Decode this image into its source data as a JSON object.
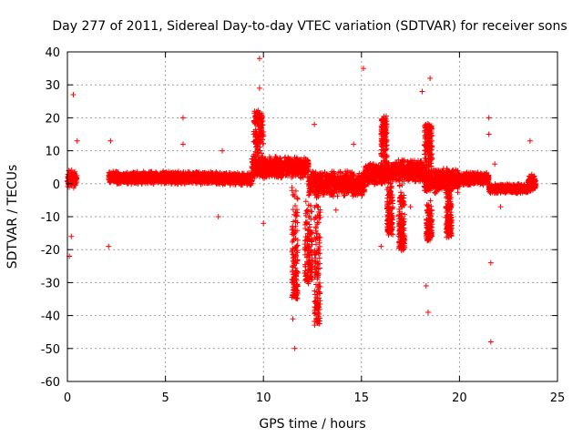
{
  "chart_data": {
    "type": "scatter",
    "title": "Day 277 of 2011, Sidereal Day-to-day VTEC variation (SDTVAR) for receiver sons",
    "xlabel": "GPS time / hours",
    "ylabel": "SDTVAR / TECUs",
    "xlim": [
      0,
      25
    ],
    "ylim": [
      -60,
      40
    ],
    "x_ticks": [
      0,
      5,
      10,
      15,
      20,
      25
    ],
    "y_ticks": [
      -60,
      -50,
      -40,
      -30,
      -20,
      -10,
      0,
      10,
      20,
      30,
      40
    ],
    "grid": true,
    "marker": "+",
    "color": "#ff0000",
    "series": [
      {
        "name": "SDTVAR",
        "dense_bands": [
          {
            "x_start": 0.0,
            "x_end": 0.5,
            "center": 1.5,
            "spread": 3.0
          },
          {
            "x_start": 2.1,
            "x_end": 7.6,
            "center": 1.8,
            "spread": 2.0
          },
          {
            "x_start": 7.6,
            "x_end": 9.4,
            "center": 1.5,
            "spread": 2.0
          },
          {
            "x_start": 9.4,
            "x_end": 12.3,
            "center": 5.0,
            "spread": 3.5
          },
          {
            "x_start": 12.3,
            "x_end": 15.2,
            "center": 0.0,
            "spread": 4.0
          },
          {
            "x_start": 15.2,
            "x_end": 16.5,
            "center": 3.0,
            "spread": 3.5
          },
          {
            "x_start": 16.5,
            "x_end": 18.2,
            "center": 4.0,
            "spread": 3.5
          },
          {
            "x_start": 18.2,
            "x_end": 20.0,
            "center": 1.0,
            "spread": 4.0
          },
          {
            "x_start": 20.0,
            "x_end": 21.5,
            "center": 1.5,
            "spread": 2.0
          },
          {
            "x_start": 21.5,
            "x_end": 23.5,
            "center": -1.5,
            "spread": 1.5
          },
          {
            "x_start": 23.5,
            "x_end": 23.9,
            "center": 0.0,
            "spread": 3.0
          }
        ],
        "excursions": [
          {
            "x_start": 9.5,
            "x_end": 10.0,
            "y_start": 5,
            "y_end": 22
          },
          {
            "x_start": 11.45,
            "x_end": 11.75,
            "y_start": 0,
            "y_end": -35
          },
          {
            "x_start": 12.1,
            "x_end": 12.5,
            "y_start": -5,
            "y_end": -30
          },
          {
            "x_start": 12.6,
            "x_end": 12.9,
            "y_start": 0,
            "y_end": -43
          },
          {
            "x_start": 16.0,
            "x_end": 16.3,
            "y_start": 5,
            "y_end": 20
          },
          {
            "x_start": 16.3,
            "x_end": 16.6,
            "y_start": 0,
            "y_end": -15
          },
          {
            "x_start": 16.9,
            "x_end": 17.2,
            "y_start": 0,
            "y_end": -20
          },
          {
            "x_start": 18.2,
            "x_end": 18.6,
            "y_start": 2,
            "y_end": 18
          },
          {
            "x_start": 18.3,
            "x_end": 18.6,
            "y_start": -5,
            "y_end": -17
          },
          {
            "x_start": 19.3,
            "x_end": 19.6,
            "y_start": 0,
            "y_end": -16
          }
        ],
        "outliers": [
          {
            "x": 0.3,
            "y": 27
          },
          {
            "x": 0.1,
            "y": -22
          },
          {
            "x": 0.2,
            "y": -16
          },
          {
            "x": 0.5,
            "y": 13
          },
          {
            "x": 2.1,
            "y": -19
          },
          {
            "x": 2.2,
            "y": 13
          },
          {
            "x": 5.9,
            "y": 20
          },
          {
            "x": 5.9,
            "y": 12
          },
          {
            "x": 7.7,
            "y": -10
          },
          {
            "x": 7.9,
            "y": 10
          },
          {
            "x": 9.8,
            "y": 38
          },
          {
            "x": 9.8,
            "y": 29
          },
          {
            "x": 10.0,
            "y": -12
          },
          {
            "x": 12.6,
            "y": 18
          },
          {
            "x": 11.6,
            "y": -50
          },
          {
            "x": 11.5,
            "y": -41
          },
          {
            "x": 15.1,
            "y": 35
          },
          {
            "x": 16.0,
            "y": -19
          },
          {
            "x": 18.1,
            "y": 28
          },
          {
            "x": 18.5,
            "y": 32
          },
          {
            "x": 18.3,
            "y": -31
          },
          {
            "x": 18.4,
            "y": -39
          },
          {
            "x": 21.5,
            "y": 20
          },
          {
            "x": 21.5,
            "y": 15
          },
          {
            "x": 21.6,
            "y": -24
          },
          {
            "x": 21.6,
            "y": -48
          },
          {
            "x": 23.6,
            "y": 13
          },
          {
            "x": 21.8,
            "y": 6
          },
          {
            "x": 22.1,
            "y": -7
          },
          {
            "x": 13.7,
            "y": -8
          },
          {
            "x": 14.6,
            "y": 12
          },
          {
            "x": 17.5,
            "y": -7
          }
        ]
      }
    ]
  }
}
